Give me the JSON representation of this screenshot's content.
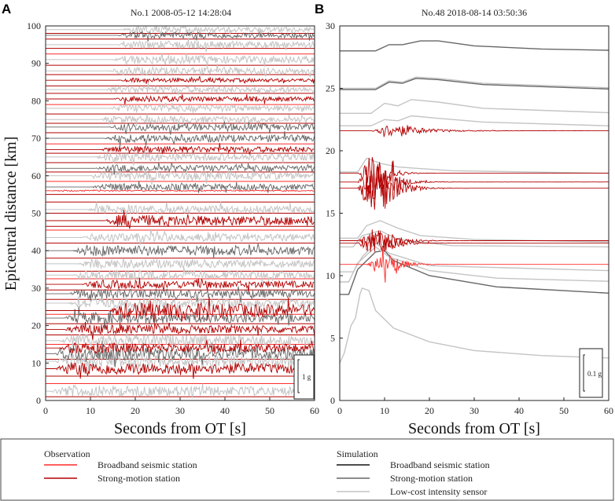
{
  "colors": {
    "broadband_obs": "#ff2a2a",
    "strong_obs": "#b30000",
    "broadband_sim": "#111111",
    "strong_sim": "#666666",
    "lowcost_sim": "#c4c4c4"
  },
  "chart_data": [
    {
      "type": "line",
      "panel": "A",
      "title": "No.1 2008-05-12 14:28:04",
      "xlabel": "Seconds from OT [s]",
      "ylabel": "Epicentral distance [km]",
      "xlim": [
        0,
        60
      ],
      "ylim": [
        0,
        100
      ],
      "xticks": [
        0,
        10,
        20,
        30,
        40,
        50,
        60
      ],
      "yticks": [
        0,
        10,
        20,
        30,
        40,
        50,
        60,
        70,
        80,
        90,
        100
      ],
      "scale_bar": "1 g",
      "traces": [
        {
          "kind": "lowcost_sim",
          "distance": 2.5,
          "onset": 1,
          "amp": 1.6
        },
        {
          "kind": "strong_obs",
          "distance": 8.5,
          "onset": 2,
          "amp": 1.8
        },
        {
          "kind": "lowcost_sim",
          "distance": 10.5,
          "onset": 2,
          "amp": 2.0
        },
        {
          "kind": "strong_sim",
          "distance": 12.5,
          "onset": 2,
          "amp": 2.0
        },
        {
          "kind": "strong_obs",
          "distance": 14.0,
          "onset": 3,
          "amp": 1.5
        },
        {
          "kind": "lowcost_sim",
          "distance": 16.0,
          "onset": 3,
          "amp": 1.8
        },
        {
          "kind": "strong_obs",
          "distance": 19.0,
          "onset": 4,
          "amp": 1.4
        },
        {
          "kind": "strong_sim",
          "distance": 22.0,
          "onset": 4,
          "amp": 1.6
        },
        {
          "kind": "strong_obs",
          "distance": 24.0,
          "onset": 14,
          "amp": 2.2
        },
        {
          "kind": "lowcost_sim",
          "distance": 26.0,
          "onset": 5,
          "amp": 1.5
        },
        {
          "kind": "strong_sim",
          "distance": 28.5,
          "onset": 5,
          "amp": 1.4
        },
        {
          "kind": "strong_obs",
          "distance": 31.0,
          "onset": 8,
          "amp": 1.2
        },
        {
          "kind": "lowcost_sim",
          "distance": 33.5,
          "onset": 6,
          "amp": 1.4
        },
        {
          "kind": "lowcost_sim",
          "distance": 36.5,
          "onset": 7,
          "amp": 1.3
        },
        {
          "kind": "strong_sim",
          "distance": 40.0,
          "onset": 6,
          "amp": 1.6
        },
        {
          "kind": "lowcost_sim",
          "distance": 43.5,
          "onset": 8,
          "amp": 1.3
        },
        {
          "kind": "strong_obs",
          "distance": 48.0,
          "onset": 13,
          "amp": 1.6
        },
        {
          "kind": "lowcost_sim",
          "distance": 51.0,
          "onset": 9,
          "amp": 1.2
        },
        {
          "kind": "broadband_obs",
          "distance": 56.0,
          "onset": 0,
          "amp": 0.2
        },
        {
          "kind": "strong_sim",
          "distance": 57.0,
          "onset": 10,
          "amp": 1.0
        },
        {
          "kind": "lowcost_sim",
          "distance": 60.0,
          "onset": 10,
          "amp": 1.3
        },
        {
          "kind": "strong_sim",
          "distance": 62.0,
          "onset": 11,
          "amp": 1.0
        },
        {
          "kind": "lowcost_sim",
          "distance": 65.0,
          "onset": 11,
          "amp": 1.2
        },
        {
          "kind": "strong_obs",
          "distance": 67.0,
          "onset": 12,
          "amp": 1.0
        },
        {
          "kind": "strong_sim",
          "distance": 70.0,
          "onset": 13,
          "amp": 1.2
        },
        {
          "kind": "strong_sim",
          "distance": 73.0,
          "onset": 14,
          "amp": 1.1
        },
        {
          "kind": "lowcost_sim",
          "distance": 75.0,
          "onset": 12,
          "amp": 1.0
        },
        {
          "kind": "lowcost_sim",
          "distance": 78.0,
          "onset": 14,
          "amp": 1.0
        },
        {
          "kind": "strong_obs",
          "distance": 80.5,
          "onset": 15,
          "amp": 0.8
        },
        {
          "kind": "lowcost_sim",
          "distance": 83.0,
          "onset": 13,
          "amp": 1.0
        },
        {
          "kind": "strong_obs",
          "distance": 85.5,
          "onset": 16,
          "amp": 0.6
        },
        {
          "kind": "lowcost_sim",
          "distance": 88.0,
          "onset": 14,
          "amp": 1.1
        },
        {
          "kind": "lowcost_sim",
          "distance": 91.0,
          "onset": 15,
          "amp": 1.2
        },
        {
          "kind": "lowcost_sim",
          "distance": 95.0,
          "onset": 16,
          "amp": 1.1
        },
        {
          "kind": "strong_sim",
          "distance": 97.5,
          "onset": 16,
          "amp": 1.0
        },
        {
          "kind": "lowcost_sim",
          "distance": 99.0,
          "onset": 17,
          "amp": 0.9
        }
      ],
      "baselines": [
        {
          "kind": "strong_obs",
          "distance": 1.0
        },
        {
          "kind": "broadband_obs",
          "distance": 4.5
        },
        {
          "kind": "strong_obs",
          "distance": 6.5
        },
        {
          "kind": "strong_obs",
          "distance": 11.0
        },
        {
          "kind": "broadband_obs",
          "distance": 15.0
        },
        {
          "kind": "strong_obs",
          "distance": 17.5
        },
        {
          "kind": "strong_obs",
          "distance": 20.5
        },
        {
          "kind": "broadband_obs",
          "distance": 23.0
        },
        {
          "kind": "strong_obs",
          "distance": 27.0
        },
        {
          "kind": "strong_obs",
          "distance": 29.5
        },
        {
          "kind": "broadband_obs",
          "distance": 32.5
        },
        {
          "kind": "strong_obs",
          "distance": 34.5
        },
        {
          "kind": "strong_obs",
          "distance": 38.0
        },
        {
          "kind": "strong_obs",
          "distance": 42.0
        },
        {
          "kind": "broadband_obs",
          "distance": 45.5
        },
        {
          "kind": "strong_obs",
          "distance": 46.5
        },
        {
          "kind": "strong_obs",
          "distance": 50.0
        },
        {
          "kind": "strong_obs",
          "distance": 53.0
        },
        {
          "kind": "strong_obs",
          "distance": 55.0
        },
        {
          "kind": "broadband_obs",
          "distance": 58.5
        },
        {
          "kind": "strong_obs",
          "distance": 61.0
        },
        {
          "kind": "strong_obs",
          "distance": 63.5
        },
        {
          "kind": "strong_obs",
          "distance": 66.0
        },
        {
          "kind": "broadband_obs",
          "distance": 68.5
        },
        {
          "kind": "strong_obs",
          "distance": 71.5
        },
        {
          "kind": "strong_obs",
          "distance": 74.0
        },
        {
          "kind": "strong_obs",
          "distance": 76.5
        },
        {
          "kind": "broadband_obs",
          "distance": 79.0
        },
        {
          "kind": "strong_obs",
          "distance": 82.0
        },
        {
          "kind": "strong_obs",
          "distance": 84.0
        },
        {
          "kind": "strong_obs",
          "distance": 87.0
        },
        {
          "kind": "strong_obs",
          "distance": 89.5
        },
        {
          "kind": "broadband_obs",
          "distance": 92.5
        },
        {
          "kind": "strong_obs",
          "distance": 94.0
        },
        {
          "kind": "strong_obs",
          "distance": 96.5
        },
        {
          "kind": "strong_obs",
          "distance": 98.0
        }
      ]
    },
    {
      "type": "line",
      "panel": "B",
      "title": "No.48 2018-08-14 03:50:36",
      "xlabel": "Seconds from OT [s]",
      "ylabel": "",
      "xlim": [
        0,
        60
      ],
      "ylim": [
        0,
        30
      ],
      "xticks": [
        0,
        10,
        20,
        30,
        40,
        50,
        60
      ],
      "yticks": [
        0,
        5,
        10,
        15,
        20,
        25,
        30
      ],
      "scale_bar": "0.1 g",
      "envelopes": [
        {
          "kind": "strong_sim",
          "points": [
            [
              0,
              28.0
            ],
            [
              8,
              28.0
            ],
            [
              11,
              28.5
            ],
            [
              14,
              28.5
            ],
            [
              18,
              28.8
            ],
            [
              22,
              28.8
            ],
            [
              30,
              28.4
            ],
            [
              45,
              28.15
            ],
            [
              60,
              28.05
            ]
          ]
        },
        {
          "kind": "lowcost_sim",
          "points": [
            [
              0,
              25.0
            ],
            [
              8,
              25.0
            ],
            [
              11,
              25.6
            ],
            [
              14,
              25.5
            ],
            [
              17,
              25.9
            ],
            [
              22,
              25.8
            ],
            [
              32,
              25.4
            ],
            [
              60,
              25.05
            ]
          ]
        },
        {
          "kind": "strong_sim",
          "points": [
            [
              0,
              24.9
            ],
            [
              8,
              24.9
            ],
            [
              11,
              25.5
            ],
            [
              14,
              25.4
            ],
            [
              17,
              25.8
            ],
            [
              22,
              25.7
            ],
            [
              32,
              25.3
            ],
            [
              60,
              24.95
            ]
          ]
        },
        {
          "kind": "lowcost_sim",
          "points": [
            [
              0,
              23.0
            ],
            [
              7,
              23.0
            ],
            [
              10,
              23.8
            ],
            [
              13,
              23.6
            ],
            [
              16,
              24.1
            ],
            [
              22,
              23.9
            ],
            [
              32,
              23.4
            ],
            [
              60,
              23.05
            ]
          ]
        },
        {
          "kind": "lowcost_sim",
          "points": [
            [
              0,
              22.0
            ],
            [
              7,
              22.0
            ],
            [
              10,
              22.5
            ],
            [
              13,
              22.4
            ],
            [
              16,
              22.8
            ],
            [
              22,
              22.6
            ],
            [
              32,
              22.3
            ],
            [
              60,
              22.0
            ]
          ]
        },
        {
          "kind": "lowcost_sim",
          "points": [
            [
              0,
              18.3
            ],
            [
              4,
              18.3
            ],
            [
              6,
              19.4
            ],
            [
              9,
              19.0
            ],
            [
              13,
              18.7
            ],
            [
              25,
              18.4
            ],
            [
              60,
              18.2
            ]
          ]
        },
        {
          "kind": "lowcost_sim",
          "points": [
            [
              0,
              13.0
            ],
            [
              4,
              13.0
            ],
            [
              6,
              14.0
            ],
            [
              9,
              14.4
            ],
            [
              13,
              13.8
            ],
            [
              18,
              13.2
            ],
            [
              30,
              12.9
            ],
            [
              60,
              12.7
            ]
          ]
        },
        {
          "kind": "lowcost_sim",
          "points": [
            [
              0,
              12.3
            ],
            [
              3,
              12.3
            ],
            [
              5,
              13.2
            ],
            [
              9,
              13.6
            ],
            [
              13,
              12.9
            ],
            [
              25,
              12.4
            ],
            [
              60,
              12.3
            ]
          ]
        },
        {
          "kind": "strong_sim",
          "points": [
            [
              0,
              8.5
            ],
            [
              2,
              8.5
            ],
            [
              4,
              10.5
            ],
            [
              8,
              11.9
            ],
            [
              10,
              12.0
            ],
            [
              12,
              11.2
            ],
            [
              20,
              10.0
            ],
            [
              35,
              9.1
            ],
            [
              60,
              8.6
            ]
          ]
        },
        {
          "kind": "lowcost_sim",
          "points": [
            [
              0,
              9.5
            ],
            [
              2,
              9.5
            ],
            [
              4,
              11.0
            ],
            [
              8,
              12.3
            ],
            [
              11,
              11.5
            ],
            [
              20,
              10.4
            ],
            [
              35,
              9.8
            ],
            [
              60,
              9.55
            ]
          ]
        },
        {
          "kind": "lowcost_sim",
          "points": [
            [
              0,
              10.3
            ],
            [
              3,
              10.3
            ],
            [
              5,
              11.5
            ],
            [
              8,
              12.6
            ],
            [
              11,
              11.8
            ],
            [
              20,
              10.8
            ],
            [
              60,
              10.4
            ]
          ]
        },
        {
          "kind": "lowcost_sim",
          "points": [
            [
              0,
              3.0
            ],
            [
              1,
              3.8
            ],
            [
              2.5,
              6.0
            ],
            [
              3.5,
              6.6
            ],
            [
              4.5,
              8.5
            ],
            [
              5,
              9.0
            ],
            [
              6.5,
              8.8
            ],
            [
              8,
              7.2
            ],
            [
              12,
              5.8
            ],
            [
              20,
              4.7
            ],
            [
              30,
              4.0
            ],
            [
              45,
              3.6
            ],
            [
              60,
              3.4
            ]
          ]
        }
      ],
      "traces": [
        {
          "kind": "strong_obs",
          "distance": 21.6,
          "onset": 7,
          "amp": 0.5,
          "decay": 0.15
        },
        {
          "kind": "strong_obs",
          "distance": 18.2,
          "onset": 4,
          "amp": 1.4,
          "decay": 0.5
        },
        {
          "kind": "strong_obs",
          "distance": 17.5,
          "onset": 4,
          "amp": 1.6,
          "decay": 0.35
        },
        {
          "kind": "strong_obs",
          "distance": 17.0,
          "onset": 4,
          "amp": 1.8,
          "decay": 0.3
        },
        {
          "kind": "strong_obs",
          "distance": 12.8,
          "onset": 4,
          "amp": 0.9,
          "decay": 0.3
        },
        {
          "kind": "strong_obs",
          "distance": 12.6,
          "onset": 4,
          "amp": 0.8,
          "decay": 0.3
        },
        {
          "kind": "broadband_obs",
          "distance": 10.9,
          "onset": 6,
          "amp": 0.7,
          "decay": 0.35
        }
      ],
      "baselines": []
    }
  ],
  "legend": {
    "observation_title": "Observation",
    "observation_items": [
      {
        "kind": "broadband_obs",
        "label": "Broadband seismic station"
      },
      {
        "kind": "strong_obs",
        "label": "Strong-motion station"
      }
    ],
    "simulation_title": "Simulation",
    "simulation_items": [
      {
        "kind": "broadband_sim",
        "label": "Broadband seismic station"
      },
      {
        "kind": "strong_sim",
        "label": "Strong-motion station"
      },
      {
        "kind": "lowcost_sim",
        "label": "Low-cost intensity sensor"
      }
    ]
  }
}
